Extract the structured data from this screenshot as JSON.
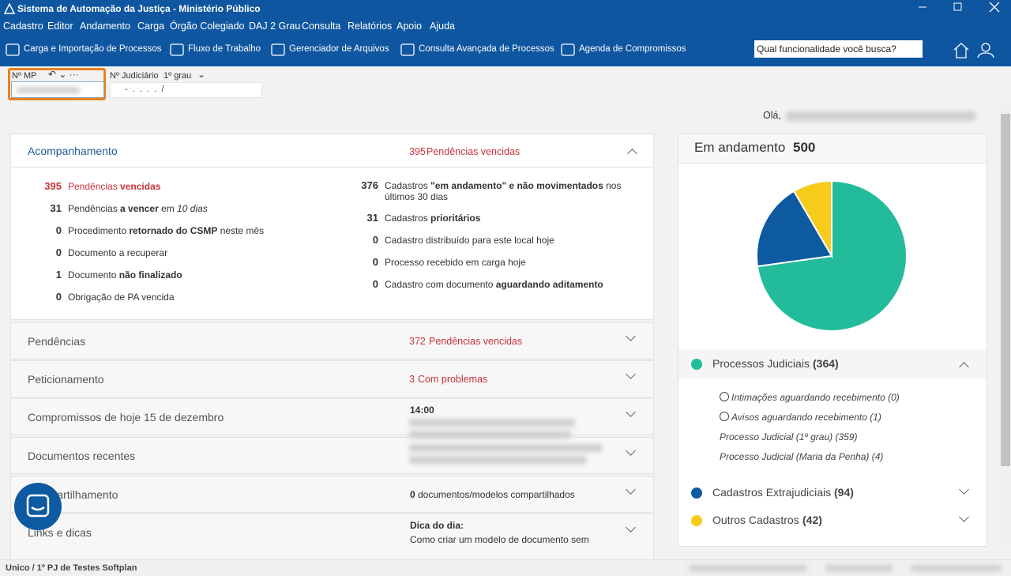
{
  "window": {
    "title": "Sistema de Automação da Justiça - Ministério Público"
  },
  "menu": [
    "Cadastro",
    "Editor",
    "Andamento",
    "Carga",
    "Órgão Colegiado",
    "DAJ 2 Grau",
    "Consulta",
    "Relatórios",
    "Apoio",
    "Ajuda"
  ],
  "toolbar": [
    "Carga e Importação de Processos",
    "Fluxo de Trabalho",
    "Gerenciador de Arquivos",
    "Consulta Avançada de Processos",
    "Agenda de Compromissos"
  ],
  "search_placeholder": "Qual funcionalidade você busca?",
  "fields": {
    "mp_label": "Nº MP",
    "judiciario_label": "Nº Judiciário",
    "grau": "1º grau",
    "mask": "-  .  .  .  .  /"
  },
  "greeting": "Olá,",
  "acompanhamento": {
    "title": "Acompanhamento",
    "badge": {
      "count": 395,
      "text": "Pendências vencidas"
    },
    "left": [
      {
        "count": 395,
        "alert": true,
        "parts": [
          {
            "t": "Pendências "
          },
          {
            "t": "vencidas",
            "b": true
          }
        ]
      },
      {
        "count": 31,
        "parts": [
          {
            "t": "Pendências "
          },
          {
            "t": "a vencer",
            "b": true
          },
          {
            "t": " em "
          },
          {
            "t": "10 dias",
            "i": true
          }
        ]
      },
      {
        "count": 0,
        "parts": [
          {
            "t": "Procedimento "
          },
          {
            "t": "retornado do CSMP",
            "b": true
          },
          {
            "t": " neste mês"
          }
        ]
      },
      {
        "count": 0,
        "parts": [
          {
            "t": "Documento a recuperar"
          }
        ]
      },
      {
        "count": 1,
        "parts": [
          {
            "t": "Documento "
          },
          {
            "t": "não finalizado",
            "b": true
          }
        ]
      },
      {
        "count": 0,
        "parts": [
          {
            "t": "Obrigação de PA vencida"
          }
        ]
      }
    ],
    "right": [
      {
        "count": 376,
        "parts": [
          {
            "t": "Cadastros "
          },
          {
            "t": "\"em andamento\" e não movimentados",
            "b": true
          },
          {
            "t": " nos últimos 30 dias"
          }
        ]
      },
      {
        "count": 31,
        "parts": [
          {
            "t": "Cadastros "
          },
          {
            "t": "prioritários",
            "b": true
          }
        ]
      },
      {
        "count": 0,
        "parts": [
          {
            "t": "Cadastro distribuído para este local hoje"
          }
        ]
      },
      {
        "count": 0,
        "parts": [
          {
            "t": "Processo recebido em carga hoje"
          }
        ]
      },
      {
        "count": 0,
        "parts": [
          {
            "t": "Cadastro com documento "
          },
          {
            "t": "aguardando aditamento",
            "b": true
          }
        ]
      }
    ]
  },
  "panels": [
    {
      "title": "Pendências",
      "badge": {
        "count": 372,
        "text": "Pendências vencidas"
      }
    },
    {
      "title": "Peticionamento",
      "badge": {
        "count": 3,
        "text": "Com problemas"
      }
    },
    {
      "title": "Compromissos de hoje 15 de dezembro",
      "info": "14:00"
    },
    {
      "title": "Documentos recentes"
    },
    {
      "title": "Compartilhamento",
      "info_count": 0,
      "info_text": "documentos/modelos compartilhados"
    },
    {
      "title": "Links e dicas",
      "info": "Dica do dia:",
      "info_text": "Como criar um modelo de documento sem"
    }
  ],
  "chart_data": {
    "type": "pie",
    "title": "Em andamento",
    "total": 500,
    "categories": [
      "Processos Judiciais",
      "Cadastros Extrajudiciais",
      "Outros Cadastros"
    ],
    "values": [
      364,
      94,
      42
    ],
    "value_labels": [
      "(364)",
      "(94)",
      "(42)"
    ],
    "colors": [
      "#22bc9a",
      "#0d5aa0",
      "#f6cb1b"
    ]
  },
  "pie_details": [
    {
      "text": "Intimações aguardando recebimento (0)",
      "clock": true
    },
    {
      "text": "Avisos aguardando recebimento (1)",
      "clock": true
    },
    {
      "text": "Processo Judicial (1º grau) (359)"
    },
    {
      "text": "Processo Judicial (Maria da Penha) (4)"
    }
  ],
  "status": "Unico / 1º PJ de Testes Softplan"
}
